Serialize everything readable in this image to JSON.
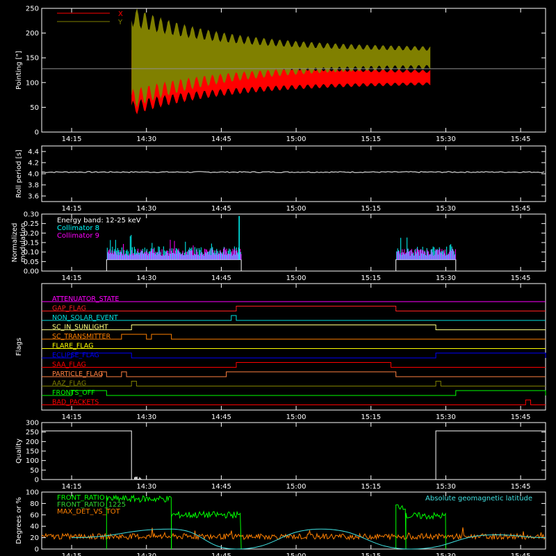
{
  "time_ticks": [
    "14:15",
    "14:30",
    "14:45",
    "15:00",
    "15:15",
    "15:30",
    "15:45"
  ],
  "chart_data": [
    {
      "type": "line",
      "ylabel": "Pointing [\"]",
      "ylim": [
        0,
        250
      ],
      "yticks": [
        "0",
        "50",
        "100",
        "150",
        "200",
        "250"
      ],
      "legend": [
        {
          "name": "X",
          "color": "#ff0000"
        },
        {
          "name": "Y",
          "color": "#808000"
        }
      ],
      "reference_y": 128,
      "start": "14:27",
      "end": "15:27",
      "x_series": {
        "center": 110,
        "amp_start": 65,
        "amp_end": 13
      },
      "y_series": {
        "center": 150,
        "amp_start": 85,
        "amp_end": 20
      }
    },
    {
      "type": "line",
      "ylabel": "Roll period [s]",
      "ylim": [
        3.5,
        4.5
      ],
      "yticks": [
        "3.6",
        "3.8",
        "4.0",
        "4.2",
        "4.4"
      ],
      "value": 4.03
    },
    {
      "type": "bar",
      "ylabel": "Normalized modulation",
      "ylim": [
        0,
        0.3
      ],
      "yticks": [
        "0.00",
        "0.05",
        "0.10",
        "0.15",
        "0.20",
        "0.25",
        "0.30"
      ],
      "annotation": "Energy band: 12-25 keV",
      "legend": [
        {
          "name": "Collimator 8",
          "color": "#00ffff"
        },
        {
          "name": "Collimator 9",
          "color": "#ff00ff"
        }
      ],
      "intervals": [
        [
          "14:22",
          "14:49"
        ],
        [
          "15:20",
          "15:32"
        ]
      ],
      "baseline": 0.08,
      "spike": {
        "time": "14:49",
        "value": 0.29
      }
    },
    {
      "type": "step",
      "ylabel": "Flags",
      "flags": [
        {
          "name": "ATTENUATOR_STATE",
          "color": "#ff00ff",
          "on": []
        },
        {
          "name": "GAP_FLAG",
          "color": "#ff2020",
          "on": [
            [
              "14:48",
              "15:20"
            ]
          ]
        },
        {
          "name": "NON_SOLAR_EVENT",
          "color": "#00e0e0",
          "on": [
            [
              "14:47",
              "14:48"
            ]
          ]
        },
        {
          "name": "SC_IN_SUNLIGHT",
          "color": "#ffff80",
          "on": [
            [
              "14:27",
              "15:28"
            ]
          ]
        },
        {
          "name": "SC_TRANSMITTER",
          "color": "#ff8000",
          "on": [
            [
              "14:25",
              "14:30"
            ],
            [
              "14:31",
              "14:35"
            ]
          ]
        },
        {
          "name": "FLARE_FLAG",
          "color": "#ffff00",
          "on": []
        },
        {
          "name": "ECLIPSE_FLAG",
          "color": "#0000ff",
          "on": [
            [
              "14:15",
              "14:27"
            ],
            [
              "15:28",
              "15:50"
            ]
          ]
        },
        {
          "name": "SAA_FLAG",
          "color": "#ff0000",
          "on": [
            [
              "14:48",
              "15:19"
            ]
          ]
        },
        {
          "name": "PARTICLE_FLAG",
          "color": "#ff8040",
          "on": [
            [
              "14:21",
              "14:22"
            ],
            [
              "14:25",
              "14:26"
            ],
            [
              "14:46",
              "15:20"
            ]
          ]
        },
        {
          "name": "AAZ_FLAG",
          "color": "#808000",
          "on": [
            [
              "14:27",
              "14:28"
            ],
            [
              "15:28",
              "15:29"
            ]
          ]
        },
        {
          "name": "FRONTS_OFF",
          "color": "#00ff00",
          "on": [
            [
              "14:15",
              "14:22"
            ],
            [
              "15:32",
              "15:50"
            ]
          ]
        },
        {
          "name": "BAD_PACKETS",
          "color": "#ff0000",
          "on": [
            [
              "15:46",
              "15:47"
            ]
          ]
        }
      ]
    },
    {
      "type": "line",
      "ylabel": "Quality",
      "ylim": [
        0,
        300
      ],
      "yticks": [
        "0",
        "50",
        "100",
        "150",
        "200",
        "250",
        "300"
      ],
      "high": 256,
      "segments": [
        [
          "14:15",
          "14:27"
        ],
        [
          "15:28",
          "15:50"
        ]
      ]
    },
    {
      "type": "line",
      "ylabel": "Degrees or %",
      "ylim": [
        0,
        100
      ],
      "yticks": [
        "0",
        "20",
        "40",
        "60",
        "80",
        "100"
      ],
      "annotation": "Absolute geomagnetic latitude",
      "legend": [
        {
          "name": "FRONT_RATIO",
          "color": "#00ff00"
        },
        {
          "name": "FRONT_RATIO_1225",
          "color": "#30d030"
        },
        {
          "name": "MAX_DET_VS_TOT",
          "color": "#ff8000"
        }
      ],
      "latitude_color": "#40e0e0",
      "latitude_points": [
        [
          "14:15",
          20
        ],
        [
          "14:35",
          35
        ],
        [
          "14:48",
          0
        ],
        [
          "15:05",
          35
        ],
        [
          "15:23",
          0
        ],
        [
          "15:40",
          25
        ],
        [
          "15:50",
          20
        ]
      ],
      "ratio_intervals": [
        [
          "14:22",
          "14:35",
          88
        ],
        [
          "14:35",
          "14:49",
          60
        ],
        [
          "15:20",
          "15:22",
          75
        ],
        [
          "15:22",
          "15:30",
          58
        ]
      ],
      "tot_level": 22
    }
  ]
}
